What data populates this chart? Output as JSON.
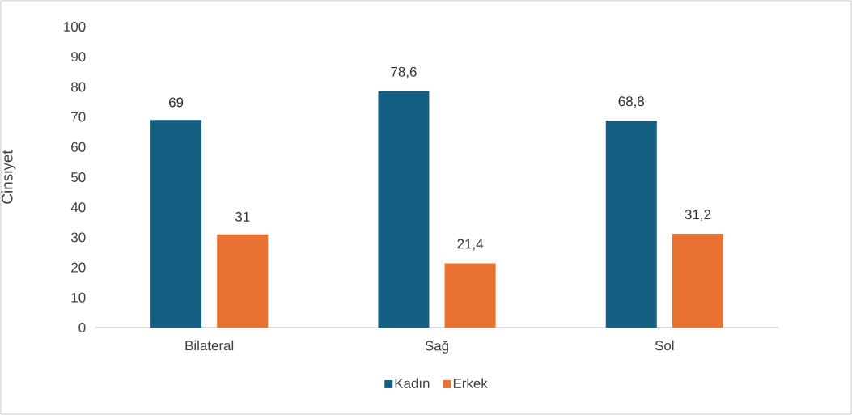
{
  "chart_data": {
    "type": "bar",
    "ylabel": "Cinsiyet",
    "categories": [
      "Bilateral",
      "Sağ",
      "Sol"
    ],
    "series": [
      {
        "name": "Kadın",
        "color": "#156082",
        "values": [
          69,
          78.6,
          68.8
        ],
        "value_labels": [
          "69",
          "78,6",
          "68,8"
        ]
      },
      {
        "name": "Erkek",
        "color": "#e97132",
        "values": [
          31,
          21.4,
          31.2
        ],
        "value_labels": [
          "31",
          "21,4",
          "31,2"
        ]
      }
    ],
    "ylim": [
      0,
      100
    ],
    "yticks": [
      0,
      10,
      20,
      30,
      40,
      50,
      60,
      70,
      80,
      90,
      100
    ],
    "grid": false,
    "legend": "bottom"
  }
}
